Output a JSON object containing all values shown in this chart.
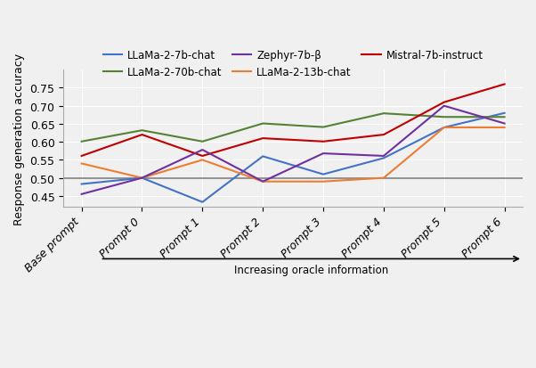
{
  "x_labels": [
    "Base prompt",
    "Prompt 0",
    "Prompt 1",
    "Prompt 2",
    "Prompt 3",
    "Prompt 4",
    "Prompt 5",
    "Prompt 6"
  ],
  "series": {
    "LLaMa-2-7b-chat": {
      "color": "#4472C4",
      "values": [
        0.483,
        0.5,
        0.433,
        0.56,
        0.51,
        0.555,
        0.64,
        0.68
      ]
    },
    "LLaMa-2-13b-chat": {
      "color": "#ED7D31",
      "values": [
        0.54,
        0.5,
        0.55,
        0.49,
        0.49,
        0.5,
        0.64,
        0.64
      ]
    },
    "LLaMa-2-70b-chat": {
      "color": "#548235",
      "values": [
        0.601,
        0.632,
        0.601,
        0.651,
        0.641,
        0.679,
        0.669,
        0.669
      ]
    },
    "Mistral-7b-instruct": {
      "color": "#C00000",
      "values": [
        0.561,
        0.62,
        0.561,
        0.61,
        0.601,
        0.62,
        0.71,
        0.76
      ]
    },
    "Zephyr-7b-β": {
      "color": "#7030A0",
      "values": [
        0.455,
        0.5,
        0.578,
        0.49,
        0.568,
        0.561,
        0.7,
        0.651
      ]
    }
  },
  "ylabel": "Response generation accuracy",
  "ylim": [
    0.42,
    0.8
  ],
  "yticks": [
    0.45,
    0.5,
    0.55,
    0.6,
    0.65,
    0.7,
    0.75
  ],
  "hline_y": 0.5,
  "hline_color": "#808080",
  "arrow_label": "Increasing oracle information",
  "background_color": "#f0f0f0",
  "grid_color": "#ffffff",
  "legend_order": [
    "LLaMa-2-7b-chat",
    "LLaMa-2-70b-chat",
    "Zephyr-7b-β",
    "LLaMa-2-13b-chat",
    "Mistral-7b-instruct"
  ]
}
